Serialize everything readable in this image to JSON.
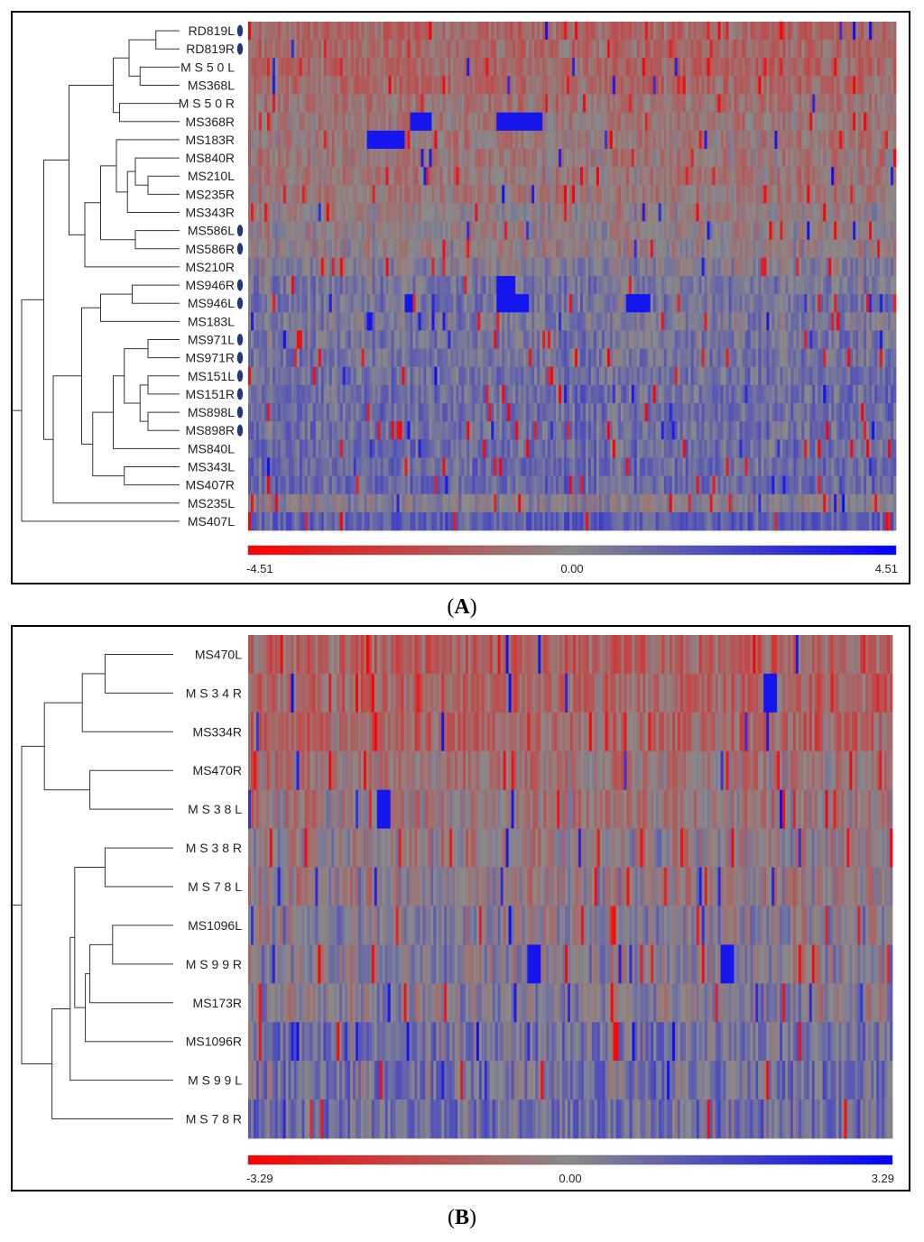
{
  "chart_data": [
    {
      "type": "heatmap",
      "panel_label": "A",
      "rows": [
        "RD819L",
        "RD819R",
        "MS50L",
        "MS368L",
        "MS50R",
        "MS368R",
        "MS183R",
        "MS840R",
        "MS210L",
        "MS235R",
        "MS343R",
        "MS586L",
        "MS586R",
        "MS210R",
        "MS946R",
        "MS946L",
        "MS183L",
        "MS971L",
        "MS971R",
        "MS151L",
        "MS151R",
        "MS898L",
        "MS898R",
        "MS840L",
        "MS343L",
        "MS407R",
        "MS235L",
        "MS407L"
      ],
      "row_labels_display": [
        "RD819L",
        "RD819R",
        "M S 5 0 L",
        "MS368L",
        "M S 5 0 R",
        "MS368R",
        "MS183R",
        "MS840R",
        "MS210L",
        "MS235R",
        "MS343R",
        "MS586L",
        "MS586R",
        "MS210R",
        "MS946R",
        "MS946L",
        "MS183L",
        "MS971L",
        "MS971R",
        "MS151L",
        "MS151R",
        "MS898L",
        "MS898R",
        "MS840L",
        "MS343L",
        "MS407R",
        "MS235L",
        "MS407L"
      ],
      "marked_rows": [
        "RD819L",
        "RD819R",
        "MS586L",
        "MS586R",
        "MS946R",
        "MS946L",
        "MS971L",
        "MS971R",
        "MS151L",
        "MS151R",
        "MS898L",
        "MS898R"
      ],
      "color_scale": {
        "min": -4.51,
        "mid": 0.0,
        "max": 4.51,
        "min_label": "-4.51",
        "mid_label": "0.00",
        "max_label": "4.51",
        "low_color": "#ff0000",
        "mid_color": "#8a8a8a",
        "high_color": "#0000ff"
      },
      "row_mean_values": [
        -1.6,
        -1.6,
        -1.7,
        -1.6,
        -1.1,
        -0.9,
        -0.9,
        -0.9,
        -0.9,
        -0.8,
        -0.3,
        -0.3,
        -0.3,
        0.2,
        0.9,
        1.0,
        0.6,
        0.9,
        1.0,
        1.2,
        1.3,
        1.3,
        1.3,
        1.4,
        1.5,
        1.6,
        0.2,
        2.1
      ],
      "blue_blocks": [
        [
          5,
          0.25,
          0.28
        ],
        [
          5,
          0.38,
          0.45
        ],
        [
          6,
          0.18,
          0.24
        ],
        [
          14,
          0.38,
          0.41
        ],
        [
          15,
          0.24,
          0.25
        ],
        [
          15,
          0.38,
          0.43
        ],
        [
          15,
          0.58,
          0.62
        ],
        [
          16,
          0.18,
          0.19
        ]
      ],
      "dendrogram": [
        {
          "children": [
            "RD819L",
            "RD819R"
          ],
          "height": 0.15
        },
        {
          "children": [
            "MS50L",
            "MS368L"
          ],
          "height": 0.25
        },
        {
          "children": [
            "C0",
            "C1"
          ],
          "height": 0.32
        },
        {
          "children": [
            "MS50R",
            "MS368R"
          ],
          "height": 0.38
        },
        {
          "children": [
            "C2",
            "C3"
          ],
          "height": 0.42
        },
        {
          "children": [
            "MS210L",
            "MS235R"
          ],
          "height": 0.2
        },
        {
          "children": [
            "MS840R",
            "C5"
          ],
          "height": 0.28
        },
        {
          "children": [
            "C6",
            "MS343R"
          ],
          "height": 0.33
        },
        {
          "children": [
            "MS183R",
            "C7"
          ],
          "height": 0.4
        },
        {
          "children": [
            "MS586L",
            "MS586R"
          ],
          "height": 0.28
        },
        {
          "children": [
            "C8",
            "C9"
          ],
          "height": 0.5
        },
        {
          "children": [
            "C10",
            "MS210R"
          ],
          "height": 0.6
        },
        {
          "children": [
            "C4",
            "C11"
          ],
          "height": 0.7
        },
        {
          "children": [
            "MS946R",
            "MS946L"
          ],
          "height": 0.3
        },
        {
          "children": [
            "C13",
            "MS183L"
          ],
          "height": 0.5
        },
        {
          "children": [
            "MS971L",
            "MS971R"
          ],
          "height": 0.2
        },
        {
          "children": [
            "MS151L",
            "MS151R"
          ],
          "height": 0.2
        },
        {
          "children": [
            "MS898L",
            "MS898R"
          ],
          "height": 0.2
        },
        {
          "children": [
            "C16",
            "C17"
          ],
          "height": 0.25
        },
        {
          "children": [
            "C15",
            "C18"
          ],
          "height": 0.35
        },
        {
          "children": [
            "C19",
            "MS840L"
          ],
          "height": 0.42
        },
        {
          "children": [
            "MS343L",
            "MS407R"
          ],
          "height": 0.35
        },
        {
          "children": [
            "C20",
            "C21"
          ],
          "height": 0.55
        },
        {
          "children": [
            "C14",
            "C22"
          ],
          "height": 0.62
        },
        {
          "children": [
            "C23",
            "MS235L"
          ],
          "height": 0.8
        },
        {
          "children": [
            "C12",
            "C24"
          ],
          "height": 0.86
        },
        {
          "children": [
            "C25",
            "MS407L"
          ],
          "height": 1.0
        }
      ],
      "n_columns": 240
    },
    {
      "type": "heatmap",
      "panel_label": "B",
      "rows": [
        "MS470L",
        "MS34R",
        "MS334R",
        "MS470R",
        "MS38L",
        "MS38R",
        "MS78L",
        "MS1096L",
        "MS99R",
        "MS173R",
        "MS1096R",
        "MS99L",
        "MS78R"
      ],
      "row_labels_display": [
        "MS470L",
        "M S 3 4 R",
        "MS334R",
        "MS470R",
        "M S 3 8 L",
        "M S 3 8 R",
        "M S 7 8 L",
        "MS1096L",
        "M S 9 9 R",
        "MS173R",
        "MS1096R",
        "M S 9 9 L",
        "M S 7 8 R"
      ],
      "marked_rows": [],
      "color_scale": {
        "min": -3.29,
        "mid": 0.0,
        "max": 3.29,
        "min_label": "-3.29",
        "mid_label": "0.00",
        "max_label": "3.29",
        "low_color": "#ff0000",
        "mid_color": "#8a8a8a",
        "high_color": "#0000ff"
      },
      "row_mean_values": [
        -1.4,
        -1.3,
        -1.3,
        -0.7,
        -0.5,
        -0.3,
        -0.2,
        0.1,
        0.1,
        0.2,
        0.8,
        0.8,
        0.9
      ],
      "blue_blocks": [
        [
          4,
          0.2,
          0.22
        ],
        [
          8,
          0.43,
          0.45
        ],
        [
          8,
          0.73,
          0.75
        ],
        [
          1,
          0.8,
          0.82
        ]
      ],
      "dendrogram": [
        {
          "children": [
            "MS470L",
            "MS34R"
          ],
          "height": 0.45
        },
        {
          "children": [
            "C0",
            "MS334R"
          ],
          "height": 0.6
        },
        {
          "children": [
            "MS470R",
            "MS38L"
          ],
          "height": 0.55
        },
        {
          "children": [
            "C1",
            "C2"
          ],
          "height": 0.85
        },
        {
          "children": [
            "MS38R",
            "MS78L"
          ],
          "height": 0.45
        },
        {
          "children": [
            "MS1096L",
            "MS99R"
          ],
          "height": 0.4
        },
        {
          "children": [
            "C5",
            "MS173R"
          ],
          "height": 0.55
        },
        {
          "children": [
            "C6",
            "MS1096R"
          ],
          "height": 0.58
        },
        {
          "children": [
            "C4",
            "C7"
          ],
          "height": 0.65
        },
        {
          "children": [
            "C8",
            "MS99L"
          ],
          "height": 0.68
        },
        {
          "children": [
            "C9",
            "MS78R"
          ],
          "height": 0.8
        },
        {
          "children": [
            "C3",
            "C10"
          ],
          "height": 1.0
        }
      ],
      "n_columns": 240
    }
  ],
  "labels": {
    "panel_a": "A",
    "panel_b": "B"
  }
}
